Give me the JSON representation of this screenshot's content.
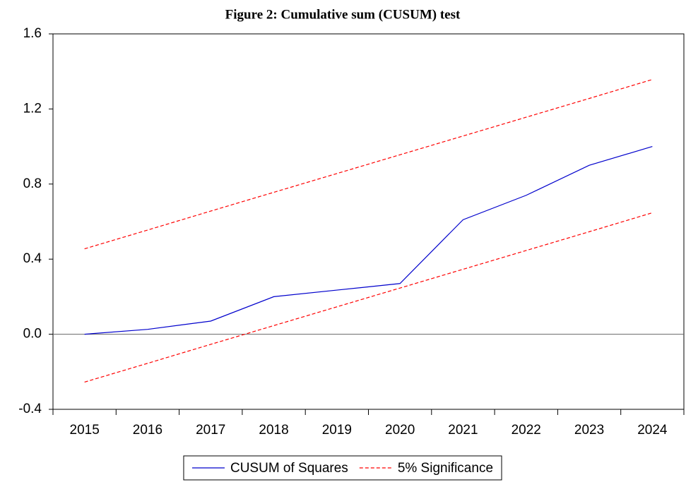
{
  "chart_data": {
    "type": "line",
    "title": "Figure 2: Cumulative sum (CUSUM) test",
    "categories": [
      "2015",
      "2016",
      "2017",
      "2018",
      "2019",
      "2020",
      "2021",
      "2022",
      "2023",
      "2024"
    ],
    "series": [
      {
        "name": "CUSUM of Squares",
        "color": "#0000cc",
        "dashed": false,
        "values": [
          0.0,
          0.026,
          0.07,
          0.2,
          0.235,
          0.27,
          0.61,
          0.74,
          0.9,
          1.0
        ]
      },
      {
        "name": "5% Significance",
        "color": "#ff0000",
        "dashed": true,
        "values": [
          0.455,
          0.555,
          0.656,
          0.756,
          0.856,
          0.956,
          1.056,
          1.156,
          1.256,
          1.357
        ]
      },
      {
        "color": "#ff0000",
        "dashed": true,
        "values": [
          -0.255,
          -0.155,
          -0.054,
          0.046,
          0.146,
          0.246,
          0.346,
          0.446,
          0.546,
          0.647
        ]
      }
    ],
    "ylim": [
      -0.4,
      1.6
    ],
    "yticks": [
      -0.4,
      {
        "value": 0,
        "label": "0.0"
      },
      0.4,
      0.8,
      1.2,
      1.6
    ],
    "zero_line": true,
    "grid": false,
    "legend": "bottom"
  }
}
